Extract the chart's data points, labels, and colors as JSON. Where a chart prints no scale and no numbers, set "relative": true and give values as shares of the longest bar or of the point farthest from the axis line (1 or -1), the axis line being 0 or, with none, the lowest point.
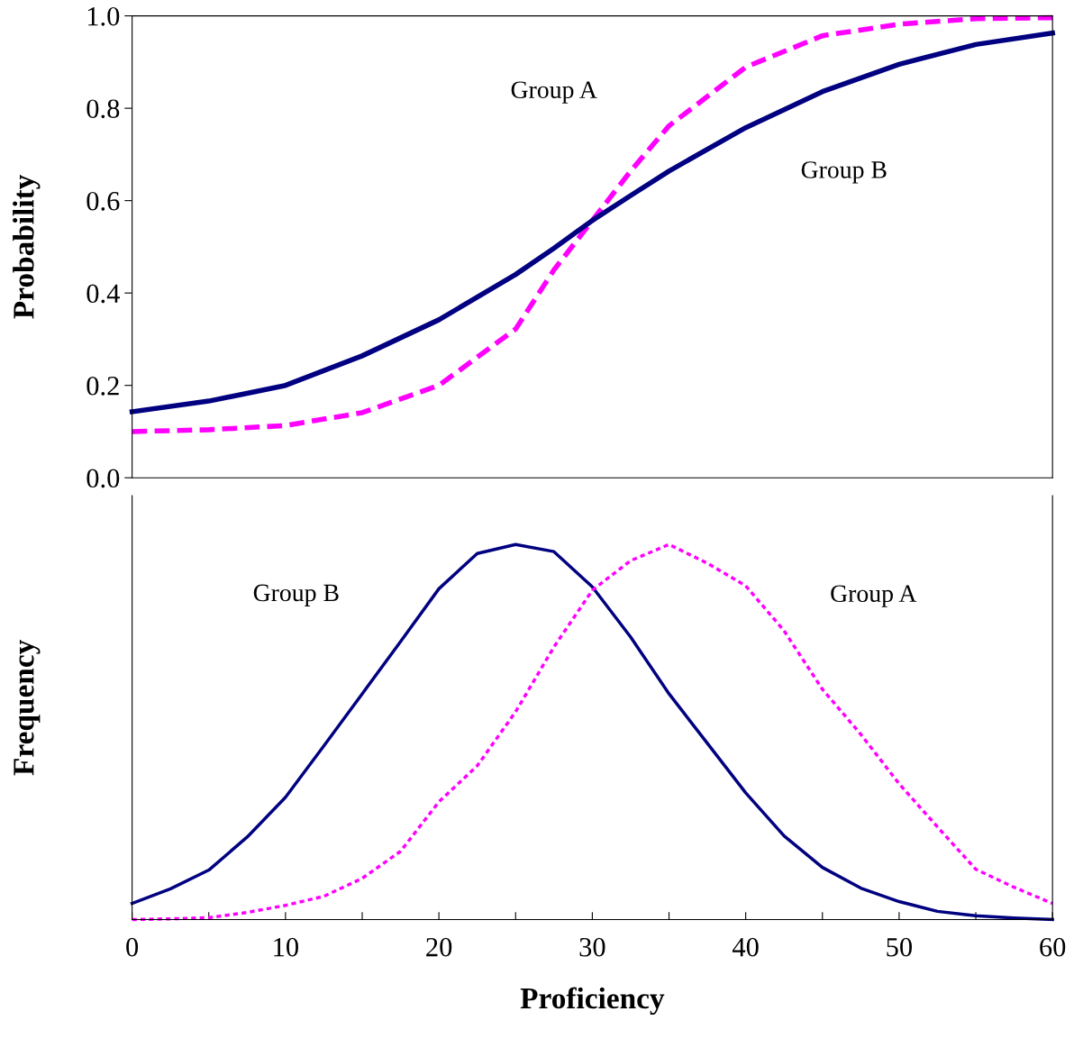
{
  "chart_data": [
    {
      "type": "line",
      "ylabel": "Probability",
      "xlim": [
        0,
        60
      ],
      "ylim": [
        0.0,
        1.0
      ],
      "yticks": [
        {
          "value": 0,
          "label": "0.0"
        },
        0.2,
        0.4,
        0.6,
        0.8,
        {
          "value": 1,
          "label": "1.0"
        }
      ],
      "tick_labels": "y",
      "x": [
        0,
        5,
        10,
        15,
        20,
        25,
        27.5,
        30,
        32.5,
        35,
        40,
        45,
        50,
        55,
        60
      ],
      "series": [
        {
          "name": "Group A",
          "color": "#ff00ff",
          "line_style": "dashed",
          "values": [
            0.1,
            0.104,
            0.113,
            0.141,
            0.2,
            0.322,
            0.45,
            0.557,
            0.664,
            0.762,
            0.889,
            0.957,
            0.982,
            0.994,
            0.996
          ]
        },
        {
          "name": "Group B",
          "color": "#000080",
          "line_style": "solid",
          "values": [
            0.143,
            0.166,
            0.2,
            0.264,
            0.342,
            0.44,
            0.497,
            0.557,
            0.611,
            0.664,
            0.758,
            0.836,
            0.895,
            0.938,
            0.963
          ]
        }
      ]
    },
    {
      "type": "line",
      "relative": true,
      "ylabel": "Frequency",
      "xlabel": "Proficiency",
      "xlim": [
        0,
        60
      ],
      "xticks": [
        0,
        {
          "value": 5,
          "label": null
        },
        10,
        {
          "value": 15,
          "label": null
        },
        20,
        {
          "value": 25,
          "label": null
        },
        30,
        {
          "value": 35,
          "label": null
        },
        40,
        {
          "value": 45,
          "label": null
        },
        50,
        {
          "value": 55,
          "label": null
        },
        60
      ],
      "tick_labels": "x",
      "x": [
        0,
        2.5,
        5,
        7.5,
        10,
        12.5,
        15,
        17.5,
        20,
        22.5,
        25,
        27.5,
        30,
        32.5,
        35,
        37.5,
        40,
        42.5,
        45,
        47.5,
        50,
        52.5,
        55,
        57.5,
        60
      ],
      "series": [
        {
          "name": "Group B",
          "color": "#000080",
          "line_style": "solid",
          "values": [
            0.043,
            0.082,
            0.132,
            0.22,
            0.326,
            0.463,
            0.602,
            0.741,
            0.882,
            0.976,
            1.0,
            0.981,
            0.887,
            0.753,
            0.602,
            0.47,
            0.338,
            0.223,
            0.139,
            0.084,
            0.048,
            0.022,
            0.01,
            0.004,
            0.0
          ]
        },
        {
          "name": "Group A",
          "color": "#ff00ff",
          "line_style": "dotted",
          "values": [
            0.0,
            0.002,
            0.005,
            0.019,
            0.038,
            0.062,
            0.11,
            0.182,
            0.314,
            0.41,
            0.554,
            0.727,
            0.878,
            0.957,
            1.0,
            0.95,
            0.89,
            0.77,
            0.614,
            0.494,
            0.362,
            0.247,
            0.134,
            0.086,
            0.043
          ]
        }
      ]
    }
  ]
}
